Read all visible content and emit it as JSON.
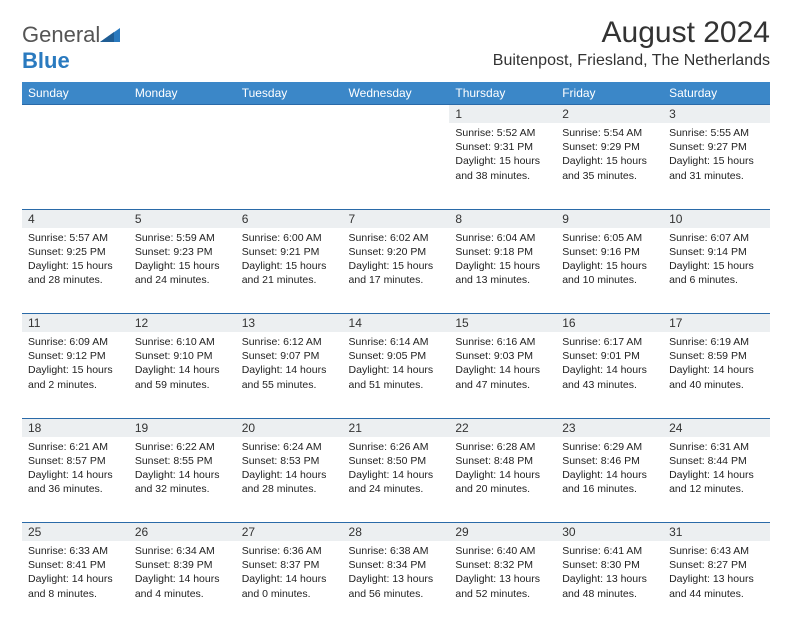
{
  "logo": {
    "textGray": "General",
    "textBlue": "Blue"
  },
  "title": "August 2024",
  "location": "Buitenpost, Friesland, The Netherlands",
  "colors": {
    "headerBg": "#3b87c8",
    "headerText": "#ffffff",
    "rowSep": "#2a6aa8",
    "dayBg": "#eceff1",
    "bodyText": "#222222",
    "logoGray": "#555555",
    "logoBlue": "#2a7abf",
    "pageBg": "#ffffff"
  },
  "typography": {
    "titleFontSize": 30,
    "locationFontSize": 16,
    "dayHeaderFontSize": 12,
    "dayNumFontSize": 12,
    "cellFontSize": 10.5,
    "logoFontSize": 22
  },
  "dayHeaders": [
    "Sunday",
    "Monday",
    "Tuesday",
    "Wednesday",
    "Thursday",
    "Friday",
    "Saturday"
  ],
  "weeks": [
    {
      "nums": [
        "",
        "",
        "",
        "",
        "1",
        "2",
        "3"
      ],
      "cells": [
        null,
        null,
        null,
        null,
        {
          "sunrise": "Sunrise: 5:52 AM",
          "sunset": "Sunset: 9:31 PM",
          "daylight": "Daylight: 15 hours and 38 minutes."
        },
        {
          "sunrise": "Sunrise: 5:54 AM",
          "sunset": "Sunset: 9:29 PM",
          "daylight": "Daylight: 15 hours and 35 minutes."
        },
        {
          "sunrise": "Sunrise: 5:55 AM",
          "sunset": "Sunset: 9:27 PM",
          "daylight": "Daylight: 15 hours and 31 minutes."
        }
      ]
    },
    {
      "nums": [
        "4",
        "5",
        "6",
        "7",
        "8",
        "9",
        "10"
      ],
      "cells": [
        {
          "sunrise": "Sunrise: 5:57 AM",
          "sunset": "Sunset: 9:25 PM",
          "daylight": "Daylight: 15 hours and 28 minutes."
        },
        {
          "sunrise": "Sunrise: 5:59 AM",
          "sunset": "Sunset: 9:23 PM",
          "daylight": "Daylight: 15 hours and 24 minutes."
        },
        {
          "sunrise": "Sunrise: 6:00 AM",
          "sunset": "Sunset: 9:21 PM",
          "daylight": "Daylight: 15 hours and 21 minutes."
        },
        {
          "sunrise": "Sunrise: 6:02 AM",
          "sunset": "Sunset: 9:20 PM",
          "daylight": "Daylight: 15 hours and 17 minutes."
        },
        {
          "sunrise": "Sunrise: 6:04 AM",
          "sunset": "Sunset: 9:18 PM",
          "daylight": "Daylight: 15 hours and 13 minutes."
        },
        {
          "sunrise": "Sunrise: 6:05 AM",
          "sunset": "Sunset: 9:16 PM",
          "daylight": "Daylight: 15 hours and 10 minutes."
        },
        {
          "sunrise": "Sunrise: 6:07 AM",
          "sunset": "Sunset: 9:14 PM",
          "daylight": "Daylight: 15 hours and 6 minutes."
        }
      ]
    },
    {
      "nums": [
        "11",
        "12",
        "13",
        "14",
        "15",
        "16",
        "17"
      ],
      "cells": [
        {
          "sunrise": "Sunrise: 6:09 AM",
          "sunset": "Sunset: 9:12 PM",
          "daylight": "Daylight: 15 hours and 2 minutes."
        },
        {
          "sunrise": "Sunrise: 6:10 AM",
          "sunset": "Sunset: 9:10 PM",
          "daylight": "Daylight: 14 hours and 59 minutes."
        },
        {
          "sunrise": "Sunrise: 6:12 AM",
          "sunset": "Sunset: 9:07 PM",
          "daylight": "Daylight: 14 hours and 55 minutes."
        },
        {
          "sunrise": "Sunrise: 6:14 AM",
          "sunset": "Sunset: 9:05 PM",
          "daylight": "Daylight: 14 hours and 51 minutes."
        },
        {
          "sunrise": "Sunrise: 6:16 AM",
          "sunset": "Sunset: 9:03 PM",
          "daylight": "Daylight: 14 hours and 47 minutes."
        },
        {
          "sunrise": "Sunrise: 6:17 AM",
          "sunset": "Sunset: 9:01 PM",
          "daylight": "Daylight: 14 hours and 43 minutes."
        },
        {
          "sunrise": "Sunrise: 6:19 AM",
          "sunset": "Sunset: 8:59 PM",
          "daylight": "Daylight: 14 hours and 40 minutes."
        }
      ]
    },
    {
      "nums": [
        "18",
        "19",
        "20",
        "21",
        "22",
        "23",
        "24"
      ],
      "cells": [
        {
          "sunrise": "Sunrise: 6:21 AM",
          "sunset": "Sunset: 8:57 PM",
          "daylight": "Daylight: 14 hours and 36 minutes."
        },
        {
          "sunrise": "Sunrise: 6:22 AM",
          "sunset": "Sunset: 8:55 PM",
          "daylight": "Daylight: 14 hours and 32 minutes."
        },
        {
          "sunrise": "Sunrise: 6:24 AM",
          "sunset": "Sunset: 8:53 PM",
          "daylight": "Daylight: 14 hours and 28 minutes."
        },
        {
          "sunrise": "Sunrise: 6:26 AM",
          "sunset": "Sunset: 8:50 PM",
          "daylight": "Daylight: 14 hours and 24 minutes."
        },
        {
          "sunrise": "Sunrise: 6:28 AM",
          "sunset": "Sunset: 8:48 PM",
          "daylight": "Daylight: 14 hours and 20 minutes."
        },
        {
          "sunrise": "Sunrise: 6:29 AM",
          "sunset": "Sunset: 8:46 PM",
          "daylight": "Daylight: 14 hours and 16 minutes."
        },
        {
          "sunrise": "Sunrise: 6:31 AM",
          "sunset": "Sunset: 8:44 PM",
          "daylight": "Daylight: 14 hours and 12 minutes."
        }
      ]
    },
    {
      "nums": [
        "25",
        "26",
        "27",
        "28",
        "29",
        "30",
        "31"
      ],
      "cells": [
        {
          "sunrise": "Sunrise: 6:33 AM",
          "sunset": "Sunset: 8:41 PM",
          "daylight": "Daylight: 14 hours and 8 minutes."
        },
        {
          "sunrise": "Sunrise: 6:34 AM",
          "sunset": "Sunset: 8:39 PM",
          "daylight": "Daylight: 14 hours and 4 minutes."
        },
        {
          "sunrise": "Sunrise: 6:36 AM",
          "sunset": "Sunset: 8:37 PM",
          "daylight": "Daylight: 14 hours and 0 minutes."
        },
        {
          "sunrise": "Sunrise: 6:38 AM",
          "sunset": "Sunset: 8:34 PM",
          "daylight": "Daylight: 13 hours and 56 minutes."
        },
        {
          "sunrise": "Sunrise: 6:40 AM",
          "sunset": "Sunset: 8:32 PM",
          "daylight": "Daylight: 13 hours and 52 minutes."
        },
        {
          "sunrise": "Sunrise: 6:41 AM",
          "sunset": "Sunset: 8:30 PM",
          "daylight": "Daylight: 13 hours and 48 minutes."
        },
        {
          "sunrise": "Sunrise: 6:43 AM",
          "sunset": "Sunset: 8:27 PM",
          "daylight": "Daylight: 13 hours and 44 minutes."
        }
      ]
    }
  ]
}
